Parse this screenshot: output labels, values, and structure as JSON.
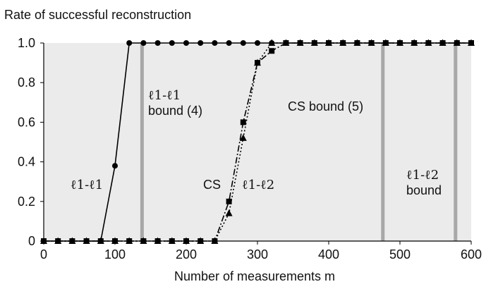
{
  "chart_data": {
    "type": "line",
    "title": "Rate of successful reconstruction",
    "xlabel": "Number of measurements m",
    "ylabel": "",
    "xlim": [
      0,
      600
    ],
    "ylim": [
      0,
      1
    ],
    "x_ticks": [
      "0",
      "100",
      "200",
      "300",
      "400",
      "500",
      "600"
    ],
    "y_ticks": [
      "0",
      "0.2",
      "0.4",
      "0.6",
      "0.8",
      "1.0"
    ],
    "grid": false,
    "background_color": "#ebebeb",
    "series": [
      {
        "name": "ℓ1-ℓ1",
        "style": "solid",
        "marker": "circle",
        "points": [
          [
            0,
            0
          ],
          [
            20,
            0
          ],
          [
            40,
            0
          ],
          [
            60,
            0
          ],
          [
            80,
            0
          ],
          [
            100,
            0.38
          ],
          [
            120,
            1
          ],
          [
            140,
            1
          ],
          [
            160,
            1
          ],
          [
            180,
            1
          ],
          [
            200,
            1
          ],
          [
            220,
            1
          ],
          [
            240,
            1
          ],
          [
            260,
            1
          ],
          [
            280,
            1
          ],
          [
            300,
            1
          ],
          [
            320,
            1
          ],
          [
            340,
            1
          ],
          [
            360,
            1
          ],
          [
            380,
            1
          ],
          [
            400,
            1
          ],
          [
            420,
            1
          ],
          [
            440,
            1
          ],
          [
            460,
            1
          ],
          [
            480,
            1
          ],
          [
            500,
            1
          ],
          [
            520,
            1
          ],
          [
            540,
            1
          ],
          [
            560,
            1
          ],
          [
            580,
            1
          ],
          [
            600,
            1
          ]
        ]
      },
      {
        "name": "CS",
        "style": "dashdot",
        "marker": "square",
        "points": [
          [
            0,
            0
          ],
          [
            20,
            0
          ],
          [
            40,
            0
          ],
          [
            60,
            0
          ],
          [
            80,
            0
          ],
          [
            100,
            0
          ],
          [
            120,
            0
          ],
          [
            140,
            0
          ],
          [
            160,
            0
          ],
          [
            180,
            0
          ],
          [
            200,
            0
          ],
          [
            220,
            0
          ],
          [
            240,
            0
          ],
          [
            260,
            0.2
          ],
          [
            280,
            0.6
          ],
          [
            300,
            0.9
          ],
          [
            320,
            0.96
          ],
          [
            340,
            1
          ],
          [
            360,
            1
          ],
          [
            380,
            1
          ],
          [
            400,
            1
          ],
          [
            420,
            1
          ],
          [
            440,
            1
          ],
          [
            460,
            1
          ],
          [
            480,
            1
          ],
          [
            500,
            1
          ],
          [
            520,
            1
          ],
          [
            540,
            1
          ],
          [
            560,
            1
          ],
          [
            580,
            1
          ],
          [
            600,
            1
          ]
        ]
      },
      {
        "name": "ℓ1-ℓ2",
        "style": "dotted",
        "marker": "triangle",
        "points": [
          [
            0,
            0
          ],
          [
            20,
            0
          ],
          [
            40,
            0
          ],
          [
            60,
            0
          ],
          [
            80,
            0
          ],
          [
            100,
            0
          ],
          [
            120,
            0
          ],
          [
            140,
            0
          ],
          [
            160,
            0
          ],
          [
            180,
            0
          ],
          [
            200,
            0
          ],
          [
            220,
            0
          ],
          [
            240,
            0
          ],
          [
            260,
            0.14
          ],
          [
            280,
            0.52
          ],
          [
            300,
            0.9
          ],
          [
            320,
            1
          ],
          [
            340,
            1
          ],
          [
            360,
            1
          ],
          [
            380,
            1
          ],
          [
            400,
            1
          ],
          [
            420,
            1
          ],
          [
            440,
            1
          ],
          [
            460,
            1
          ],
          [
            480,
            1
          ],
          [
            500,
            1
          ],
          [
            520,
            1
          ],
          [
            540,
            1
          ],
          [
            560,
            1
          ],
          [
            580,
            1
          ],
          [
            600,
            1
          ]
        ]
      }
    ],
    "bounds": [
      {
        "x": 138,
        "label_line1": "ℓ1-ℓ1",
        "label_line2": "bound (4)"
      },
      {
        "x": 476,
        "label_line1": "CS bound (5)",
        "label_line2": ""
      },
      {
        "x": 578,
        "label_line1": "ℓ1-ℓ2",
        "label_line2": "bound"
      }
    ],
    "series_labels": [
      "ℓ1-ℓ1",
      "CS",
      "ℓ1-ℓ2"
    ],
    "colors": {
      "lines": "#000000",
      "bound_lines": "#a8a8a8"
    }
  }
}
